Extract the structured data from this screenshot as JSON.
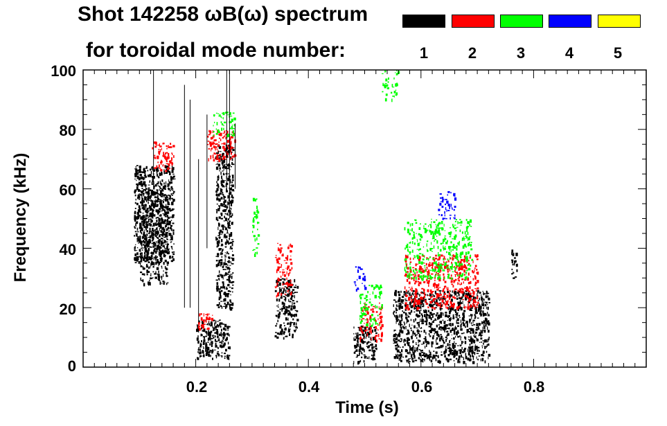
{
  "chart_data": {
    "type": "heatmap",
    "title_line1": "Shot 142258 ωB(ω) spectrum",
    "title_line2": "for toroidal mode number:",
    "xlabel": "Time (s)",
    "ylabel": "Frequency (kHz)",
    "xlim": [
      0.0,
      1.0
    ],
    "ylim": [
      0,
      100
    ],
    "xticks": [
      {
        "value": 0.2,
        "label": "0.2"
      },
      {
        "value": 0.4,
        "label": "0.4"
      },
      {
        "value": 0.6,
        "label": "0.6"
      },
      {
        "value": 0.8,
        "label": "0.8"
      }
    ],
    "yticks": [
      {
        "value": 0,
        "label": "0"
      },
      {
        "value": 20,
        "label": "20"
      },
      {
        "value": 40,
        "label": "40"
      },
      {
        "value": 60,
        "label": "60"
      },
      {
        "value": 80,
        "label": "80"
      },
      {
        "value": 100,
        "label": "100"
      }
    ],
    "legend": [
      {
        "mode": "1",
        "color": "#000000"
      },
      {
        "mode": "2",
        "color": "#ff0000"
      },
      {
        "mode": "3",
        "color": "#00ff00"
      },
      {
        "mode": "4",
        "color": "#0000ff"
      },
      {
        "mode": "5",
        "color": "#ffff00"
      }
    ],
    "regions": [
      {
        "mode": 1,
        "t": [
          0.09,
          0.16
        ],
        "f": [
          35,
          68
        ],
        "density": 0.9
      },
      {
        "mode": 1,
        "t": [
          0.1,
          0.15
        ],
        "f": [
          28,
          60
        ],
        "density": 0.5
      },
      {
        "mode": 1,
        "t": [
          0.2,
          0.26
        ],
        "f": [
          3,
          16
        ],
        "density": 0.85
      },
      {
        "mode": 1,
        "t": [
          0.235,
          0.265
        ],
        "f": [
          20,
          75
        ],
        "density": 0.8
      },
      {
        "mode": 1,
        "t": [
          0.34,
          0.38
        ],
        "f": [
          10,
          30
        ],
        "density": 0.7
      },
      {
        "mode": 1,
        "t": [
          0.48,
          0.52
        ],
        "f": [
          2,
          14
        ],
        "density": 0.8
      },
      {
        "mode": 1,
        "t": [
          0.55,
          0.72
        ],
        "f": [
          2,
          26
        ],
        "density": 0.8
      },
      {
        "mode": 1,
        "t": [
          0.76,
          0.77
        ],
        "f": [
          30,
          40
        ],
        "density": 0.7
      },
      {
        "mode": 2,
        "t": [
          0.12,
          0.16
        ],
        "f": [
          66,
          76
        ],
        "density": 0.5
      },
      {
        "mode": 2,
        "t": [
          0.2,
          0.23
        ],
        "f": [
          13,
          19
        ],
        "density": 0.5
      },
      {
        "mode": 2,
        "t": [
          0.22,
          0.27
        ],
        "f": [
          70,
          80
        ],
        "density": 0.7
      },
      {
        "mode": 2,
        "t": [
          0.34,
          0.37
        ],
        "f": [
          24,
          42
        ],
        "density": 0.5
      },
      {
        "mode": 2,
        "t": [
          0.49,
          0.53
        ],
        "f": [
          9,
          22
        ],
        "density": 0.5
      },
      {
        "mode": 2,
        "t": [
          0.57,
          0.7
        ],
        "f": [
          20,
          38
        ],
        "density": 0.6
      },
      {
        "mode": 3,
        "t": [
          0.23,
          0.27
        ],
        "f": [
          78,
          86
        ],
        "density": 0.5
      },
      {
        "mode": 3,
        "t": [
          0.3,
          0.31
        ],
        "f": [
          38,
          60
        ],
        "density": 0.5
      },
      {
        "mode": 3,
        "t": [
          0.49,
          0.53
        ],
        "f": [
          14,
          28
        ],
        "density": 0.4
      },
      {
        "mode": 3,
        "t": [
          0.53,
          0.56
        ],
        "f": [
          90,
          100
        ],
        "density": 0.4
      },
      {
        "mode": 3,
        "t": [
          0.57,
          0.69
        ],
        "f": [
          30,
          50
        ],
        "density": 0.45
      },
      {
        "mode": 4,
        "t": [
          0.48,
          0.5
        ],
        "f": [
          26,
          34
        ],
        "density": 0.4
      },
      {
        "mode": 4,
        "t": [
          0.63,
          0.66
        ],
        "f": [
          50,
          60
        ],
        "density": 0.4
      }
    ],
    "lines": [
      {
        "mode": 1,
        "t": 0.125,
        "f": [
          60,
          100
        ]
      },
      {
        "mode": 1,
        "t": 0.18,
        "f": [
          20,
          95
        ]
      },
      {
        "mode": 1,
        "t": 0.19,
        "f": [
          20,
          90
        ]
      },
      {
        "mode": 1,
        "t": 0.205,
        "f": [
          15,
          70
        ]
      },
      {
        "mode": 1,
        "t": 0.22,
        "f": [
          40,
          85
        ]
      },
      {
        "mode": 1,
        "t": 0.255,
        "f": [
          60,
          100
        ]
      },
      {
        "mode": 1,
        "t": 0.26,
        "f": [
          50,
          100
        ]
      },
      {
        "mode": 1,
        "t": 0.27,
        "f": [
          60,
          82
        ]
      }
    ]
  }
}
